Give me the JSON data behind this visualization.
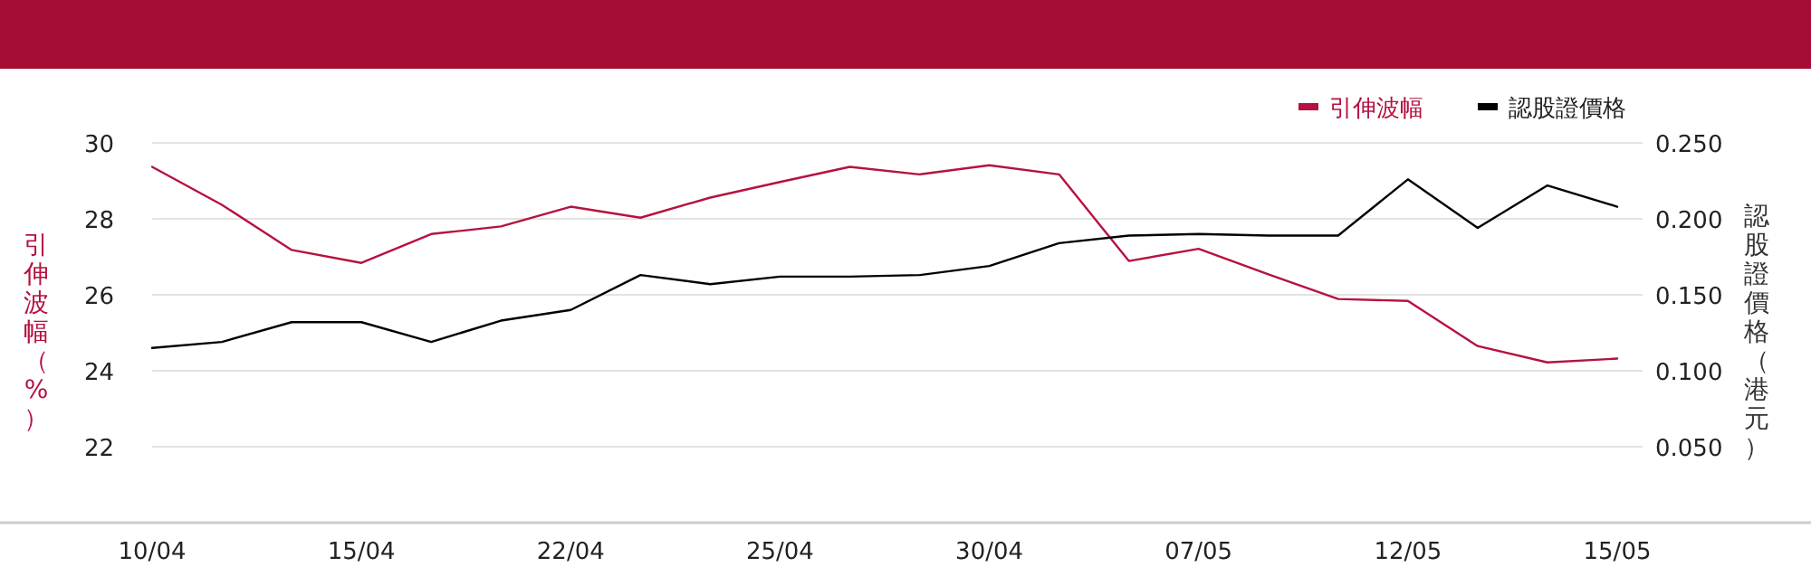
{
  "chart_data": {
    "type": "line",
    "categories": [
      "10/04",
      null,
      null,
      "15/04",
      null,
      null,
      "22/04",
      null,
      null,
      "25/04",
      null,
      null,
      "30/04",
      null,
      null,
      "07/05",
      null,
      null,
      "12/05",
      null,
      null,
      "15/05"
    ],
    "series": [
      {
        "name": "引伸波幅",
        "color": "#b5123f",
        "values": [
          29.37,
          28.37,
          27.18,
          26.84,
          27.6,
          27.8,
          28.32,
          28.03,
          28.56,
          28.97,
          29.37,
          29.17,
          29.41,
          29.17,
          26.89,
          27.21,
          26.54,
          25.89,
          25.84,
          24.65,
          24.22,
          24.32
        ]
      },
      {
        "name": "認股證價格",
        "color": "#000000",
        "axis": "y2",
        "values": [
          0.115,
          0.119,
          0.132,
          0.132,
          0.119,
          0.133,
          0.14,
          0.163,
          0.157,
          0.162,
          0.162,
          0.163,
          0.169,
          0.184,
          0.189,
          0.19,
          0.189,
          0.189,
          0.226,
          0.194,
          0.222,
          0.208
        ]
      }
    ],
    "ylabel": "引伸波幅（%）",
    "y2label": "認股證價格（港元）",
    "ylim": [
      20,
      30
    ],
    "yticks": [
      22,
      24,
      26,
      28,
      30
    ],
    "y2lim": [
      0,
      0.25
    ],
    "y2ticks": [
      {
        "value": 0.05,
        "label": "0.050"
      },
      {
        "value": 0.1,
        "label": "0.100"
      },
      {
        "value": 0.15,
        "label": "0.150"
      },
      {
        "value": 0.2,
        "label": "0.200"
      },
      {
        "value": 0.25,
        "label": "0.250"
      }
    ],
    "grid": "y",
    "legend": "top right",
    "marker": "none",
    "line_style": "solid"
  }
}
